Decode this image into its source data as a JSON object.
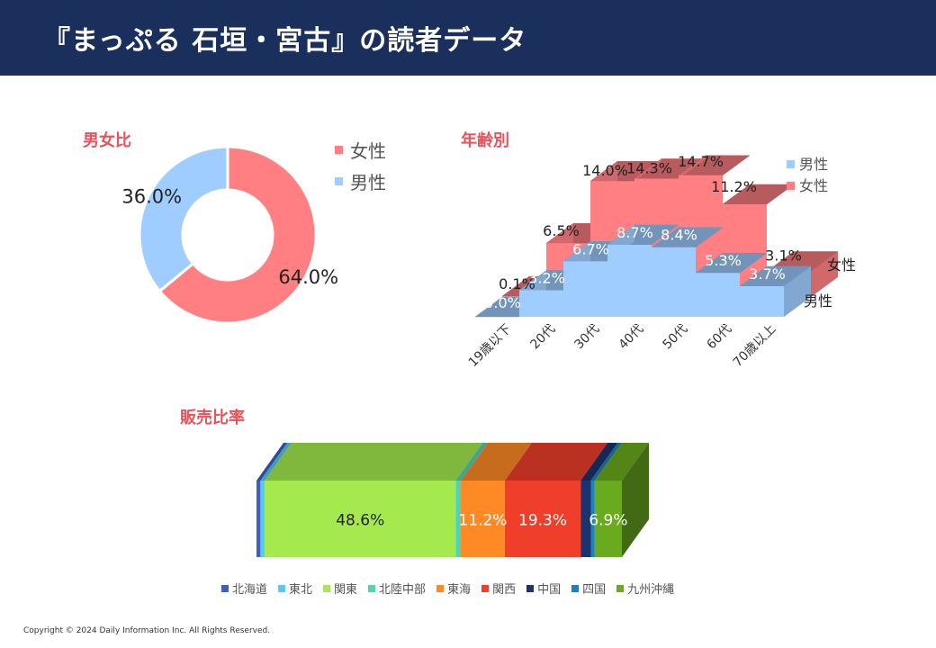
{
  "header": {
    "title": "『まっぷる 石垣・宮古』の読者データ"
  },
  "sections": {
    "gender": "男女比",
    "age": "年齢別",
    "sales": "販売比率"
  },
  "footer": {
    "copyright": "Copyright © 2024 Daily Information Inc. All Rights Reserved."
  },
  "chart_data": [
    {
      "id": "gender",
      "type": "pie",
      "title": "男女比",
      "slices": [
        {
          "name": "女性",
          "value": 64.0,
          "label": "64.0%",
          "color": "#ff7f82"
        },
        {
          "name": "男性",
          "value": 36.0,
          "label": "36.0%",
          "color": "#9fcdff"
        }
      ],
      "legend": [
        "女性",
        "男性"
      ],
      "legend_position": "top-right"
    },
    {
      "id": "age",
      "type": "area",
      "title": "年齢別",
      "categories": [
        "19歳以下",
        "20代",
        "30代",
        "40代",
        "50代",
        "60代",
        "70歳以上"
      ],
      "series": [
        {
          "name": "男性",
          "values": [
            0.0,
            3.2,
            6.7,
            8.7,
            8.4,
            5.3,
            3.7
          ],
          "labels": [
            "0.0%",
            "3.2%",
            "6.7%",
            "8.7%",
            "8.4%",
            "5.3%",
            "3.7%"
          ],
          "color": "#9fcdff"
        },
        {
          "name": "女性",
          "values": [
            0.1,
            6.5,
            14.0,
            14.3,
            14.7,
            11.2,
            3.1
          ],
          "labels": [
            "0.1%",
            "6.5%",
            "14.0%",
            "14.3%",
            "14.7%",
            "11.2%",
            "3.1%"
          ],
          "color": "#ff7f82"
        }
      ],
      "depth_labels": [
        "女性",
        "男性"
      ],
      "legend": [
        "男性",
        "女性"
      ],
      "legend_position": "top-right"
    },
    {
      "id": "sales",
      "type": "bar",
      "title": "販売比率",
      "stacked": true,
      "segments": [
        {
          "name": "北海道",
          "value": 1.0,
          "label": "",
          "color": "#3e5fc1"
        },
        {
          "name": "東北",
          "value": 1.1,
          "label": "",
          "color": "#56cbef"
        },
        {
          "name": "関東",
          "value": 48.6,
          "label": "48.6%",
          "color": "#a4ea4e"
        },
        {
          "name": "北陸中部",
          "value": 1.3,
          "label": "",
          "color": "#4fd4b6"
        },
        {
          "name": "東海",
          "value": 11.2,
          "label": "11.2%",
          "color": "#ff8a25"
        },
        {
          "name": "関西",
          "value": 19.3,
          "label": "19.3%",
          "color": "#ef3e2a"
        },
        {
          "name": "中国",
          "value": 2.6,
          "label": "",
          "color": "#1d3370"
        },
        {
          "name": "四国",
          "value": 1.0,
          "label": "",
          "color": "#1a83b8"
        },
        {
          "name": "九州沖縄",
          "value": 6.9,
          "label": "6.9%",
          "color": "#6aaa1e"
        }
      ],
      "legend_position": "bottom"
    }
  ]
}
